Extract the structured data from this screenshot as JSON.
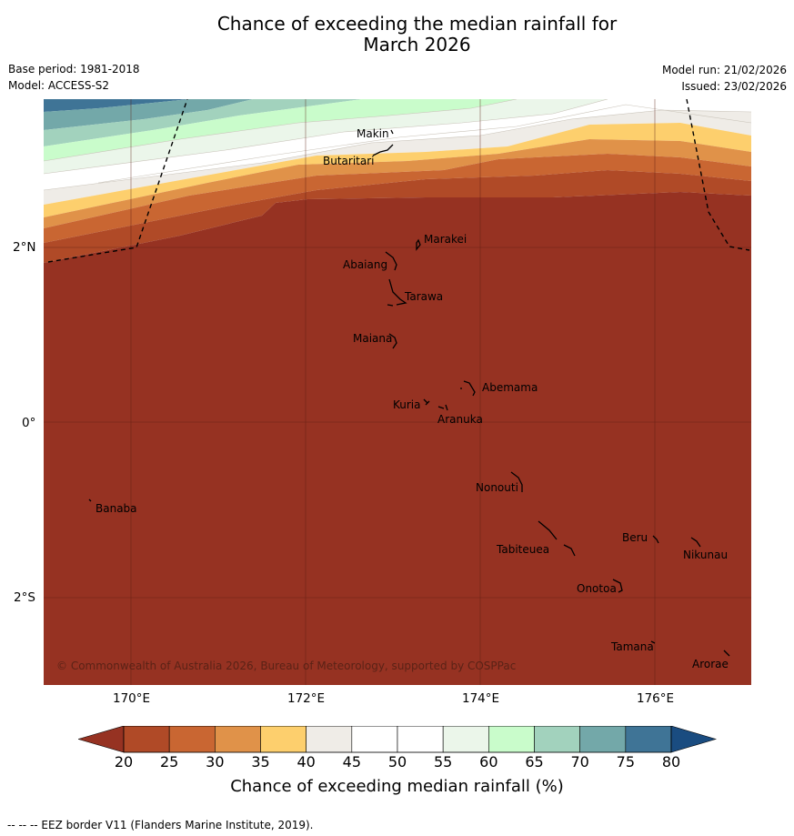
{
  "title": {
    "line1": "Chance of exceeding the median rainfall for",
    "line2": "March 2026"
  },
  "meta": {
    "base_period": "Base period: 1981-2018",
    "model": "Model: ACCESS-S2",
    "model_run": "Model run: 21/02/2026",
    "issued": "Issued: 23/02/2026"
  },
  "axes": {
    "lon_ticks": [
      "170°E",
      "172°E",
      "174°E",
      "176°E"
    ],
    "lat_ticks": [
      "2°N",
      "0°",
      "2°S"
    ]
  },
  "places": {
    "makin": "Makin",
    "butaritari": "Butaritari",
    "marakei": "Marakei",
    "abaiang": "Abaiang",
    "tarawa": "Tarawa",
    "maiana": "Maiana",
    "abemama": "Abemama",
    "kuria": "Kuria",
    "aranuka": "Aranuka",
    "nonouti": "Nonouti",
    "banaba": "Banaba",
    "beru": "Beru",
    "nikunau": "Nikunau",
    "tabiteuea": "Tabiteuea",
    "onotoa": "Onotoa",
    "tamana": "Tamana",
    "arorae": "Arorae"
  },
  "copyright": "© Commonwealth of Australia 2026, Bureau of Meteorology, supported by COSPPac",
  "colorbar": {
    "ticks": [
      "20",
      "25",
      "30",
      "35",
      "40",
      "45",
      "50",
      "55",
      "60",
      "65",
      "70",
      "75",
      "80"
    ],
    "label": "Chance of exceeding median rainfall (%)",
    "colors": [
      "#b04a27",
      "#c96632",
      "#e09249",
      "#fdcf6d",
      "#efece7",
      "#ffffff",
      "#ffffff",
      "#ebf6ea",
      "#c9fccb",
      "#a2d2bd",
      "#73a8a9",
      "#3f7496"
    ],
    "under_color": "#963222",
    "over_color": "#1a4c80"
  },
  "footnote": "--  --  -- EEZ border V11 (Flanders Marine Institute, 2019)."
}
